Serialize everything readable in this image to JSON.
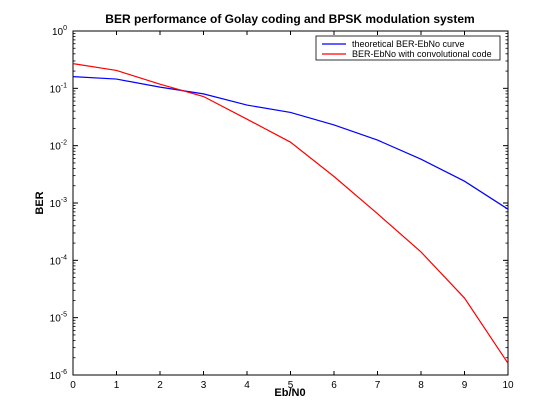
{
  "chart_data": {
    "type": "line",
    "title": "BER performance of Golay coding and BPSK modulation system",
    "xlabel": "Eb/N0",
    "ylabel": "BER",
    "xlim": [
      0,
      10
    ],
    "ylim": [
      1e-06,
      1
    ],
    "yscale": "log",
    "x_ticks": [
      0,
      1,
      2,
      3,
      4,
      5,
      6,
      7,
      8,
      9,
      10
    ],
    "y_ticks": [
      {
        "base": "10",
        "exp": "0",
        "value": 1
      },
      {
        "base": "10",
        "exp": "-1",
        "value": 0.1
      },
      {
        "base": "10",
        "exp": "-2",
        "value": 0.01
      },
      {
        "base": "10",
        "exp": "-3",
        "value": 0.001
      },
      {
        "base": "10",
        "exp": "-4",
        "value": 0.0001
      },
      {
        "base": "10",
        "exp": "-5",
        "value": 1e-05
      },
      {
        "base": "10",
        "exp": "-6",
        "value": 1e-06
      }
    ],
    "legend_position": "top-right",
    "grid": false,
    "x": [
      0,
      1,
      2,
      3,
      4,
      5,
      6,
      7,
      8,
      9,
      10
    ],
    "series": [
      {
        "name": "theoretical BER-EbNo curve",
        "color": "#0000ff",
        "values": [
          0.16,
          0.145,
          0.105,
          0.08,
          0.051,
          0.038,
          0.023,
          0.0125,
          0.0058,
          0.0024,
          0.00078
        ]
      },
      {
        "name": "BER-EbNo with convolutional code",
        "color": "#ff0000",
        "values": [
          0.27,
          0.205,
          0.118,
          0.072,
          0.029,
          0.0115,
          0.0029,
          0.00065,
          0.00014,
          2.2e-05,
          1.6e-06
        ]
      }
    ]
  }
}
